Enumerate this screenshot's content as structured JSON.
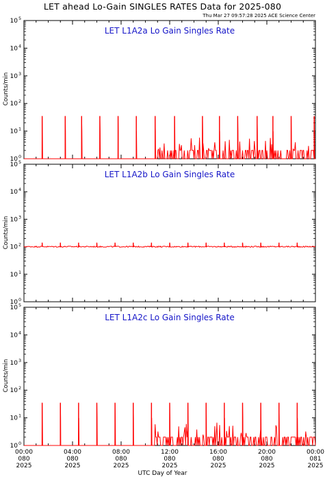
{
  "header": {
    "title": "LET ahead Lo-Gain SINGLES RATES Data for 2025-080",
    "timestamp": "Thu Mar 27 09:57:28 2025 ACE Science Center"
  },
  "colors": {
    "series": "#ff0000",
    "panel_title": "#1515c8",
    "axis": "#000000"
  },
  "chart_data": [
    {
      "type": "line",
      "title": "LET L1A2a Lo Gain Singles Rate",
      "ylabel": "Counts/min",
      "xlabel": "UTC Day of Year",
      "yscale": "log",
      "ylim": [
        1,
        100000
      ],
      "xlim": [
        0,
        24
      ],
      "series": [
        {
          "baseline": 1,
          "periodic_spikes": {
            "hours": [
              1.5,
              3.4,
              4.75,
              6.25,
              7.75,
              9.25,
              10.8,
              12.4,
              14.7,
              16.1,
              17.6,
              19.2,
              20.5,
              22.0,
              23.9
            ],
            "peak": 35,
            "width_decades": 0.55
          },
          "noise_onset_hour": 11.0,
          "noise_level": 2,
          "noise_max": 6
        }
      ]
    },
    {
      "type": "line",
      "title": "LET L1A2b Lo Gain Singles Rate",
      "ylabel": "Counts/min",
      "xlabel": "UTC Day of Year",
      "yscale": "log",
      "ylim": [
        1,
        100000
      ],
      "xlim": [
        0,
        24
      ],
      "series": [
        {
          "baseline": 100,
          "periodic_spikes": {
            "hours": [
              1.5,
              3.0,
              4.5,
              6.0,
              7.5,
              9.0,
              10.5,
              12.0,
              13.5,
              15.0,
              16.5,
              18.0,
              19.5,
              21.0,
              22.5
            ],
            "peak": 140,
            "width_decades": 0.1
          },
          "noise_onset_hour": 0,
          "noise_level": 100,
          "noise_max": 110
        }
      ]
    },
    {
      "type": "line",
      "title": "LET L1A2c Lo Gain Singles Rate",
      "ylabel": "Counts/min",
      "xlabel": "UTC Day of Year",
      "yscale": "log",
      "ylim": [
        1,
        100000
      ],
      "xlim": [
        0,
        24
      ],
      "series": [
        {
          "baseline": 1,
          "periodic_spikes": {
            "hours": [
              1.5,
              3.0,
              4.5,
              6.0,
              7.5,
              9.0,
              10.5,
              12.0,
              13.5,
              15.0,
              16.5,
              18.0,
              19.5,
              21.0,
              22.5
            ],
            "peak": 35,
            "width_decades": 0.55
          },
          "noise_onset_hour": 10.8,
          "noise_level": 2,
          "noise_max": 7
        }
      ]
    }
  ],
  "yticks": {
    "values": [
      1,
      10,
      100,
      1000,
      10000,
      100000
    ],
    "exponents": [
      "0",
      "1",
      "2",
      "3",
      "4",
      "5"
    ]
  },
  "xticks": [
    {
      "hour": 0,
      "time": "00:00",
      "doy": "080",
      "year": "2025"
    },
    {
      "hour": 4,
      "time": "04:00",
      "doy": "080",
      "year": "2025"
    },
    {
      "hour": 8,
      "time": "08:00",
      "doy": "080",
      "year": "2025"
    },
    {
      "hour": 12,
      "time": "12:00",
      "doy": "080",
      "year": "2025"
    },
    {
      "hour": 16,
      "time": "16:00",
      "doy": "080",
      "year": "2025"
    },
    {
      "hour": 20,
      "time": "20:00",
      "doy": "080",
      "year": "2025"
    },
    {
      "hour": 24,
      "time": "00:00",
      "doy": "081",
      "year": "2025"
    }
  ]
}
